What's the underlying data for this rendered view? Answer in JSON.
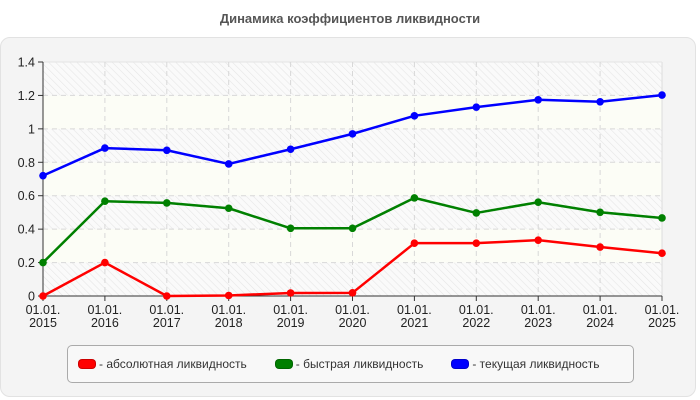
{
  "title": "Динамика коэффициентов ликвидности",
  "chart_data": {
    "type": "line",
    "title": "Динамика коэффициентов ликвидности",
    "xlabel": "",
    "ylabel": "",
    "categories": [
      "01.01.\n2015",
      "01.01.\n2016",
      "01.01.\n2017",
      "01.01.\n2018",
      "01.01.\n2019",
      "01.01.\n2020",
      "01.01.\n2021",
      "01.01.\n2022",
      "01.01.\n2023",
      "01.01.\n2024",
      "01.01.\n2025"
    ],
    "x_tick_lines": [
      [
        "01.01.",
        "2015"
      ],
      [
        "01.01.",
        "2016"
      ],
      [
        "01.01.",
        "2017"
      ],
      [
        "01.01.",
        "2018"
      ],
      [
        "01.01.",
        "2019"
      ],
      [
        "01.01.",
        "2020"
      ],
      [
        "01.01.",
        "2021"
      ],
      [
        "01.01.",
        "2022"
      ],
      [
        "01.01.",
        "2023"
      ],
      [
        "01.01.",
        "2024"
      ],
      [
        "01.01.",
        "2025"
      ]
    ],
    "y_ticks": [
      "0",
      "0.2",
      "0.4",
      "0.6",
      "0.8",
      "1",
      "1.2",
      "1.4"
    ],
    "ylim": [
      0,
      1.4
    ],
    "grid": true,
    "legend_position": "bottom",
    "series": [
      {
        "name": "абсолютная ликвидность",
        "color": "#ff0000",
        "values": [
          0.0,
          0.2,
          0.0,
          0.003,
          0.018,
          0.019,
          0.316,
          0.316,
          0.334,
          0.293,
          0.256
        ]
      },
      {
        "name": "быстрая ликвидность",
        "color": "#008000",
        "values": [
          0.2,
          0.567,
          0.557,
          0.525,
          0.405,
          0.405,
          0.587,
          0.497,
          0.561,
          0.501,
          0.467
        ]
      },
      {
        "name": "текущая ликвидность",
        "color": "#0000ff",
        "values": [
          0.72,
          0.885,
          0.872,
          0.79,
          0.878,
          0.97,
          1.078,
          1.13,
          1.174,
          1.162,
          1.202
        ]
      }
    ]
  },
  "legend": {
    "items": [
      {
        "label": "- абсолютная ликвидность",
        "color": "#ff0000"
      },
      {
        "label": "- быстрая ликвидность",
        "color": "#008000"
      },
      {
        "label": "- текущая ликвидность",
        "color": "#0000ff"
      }
    ]
  }
}
